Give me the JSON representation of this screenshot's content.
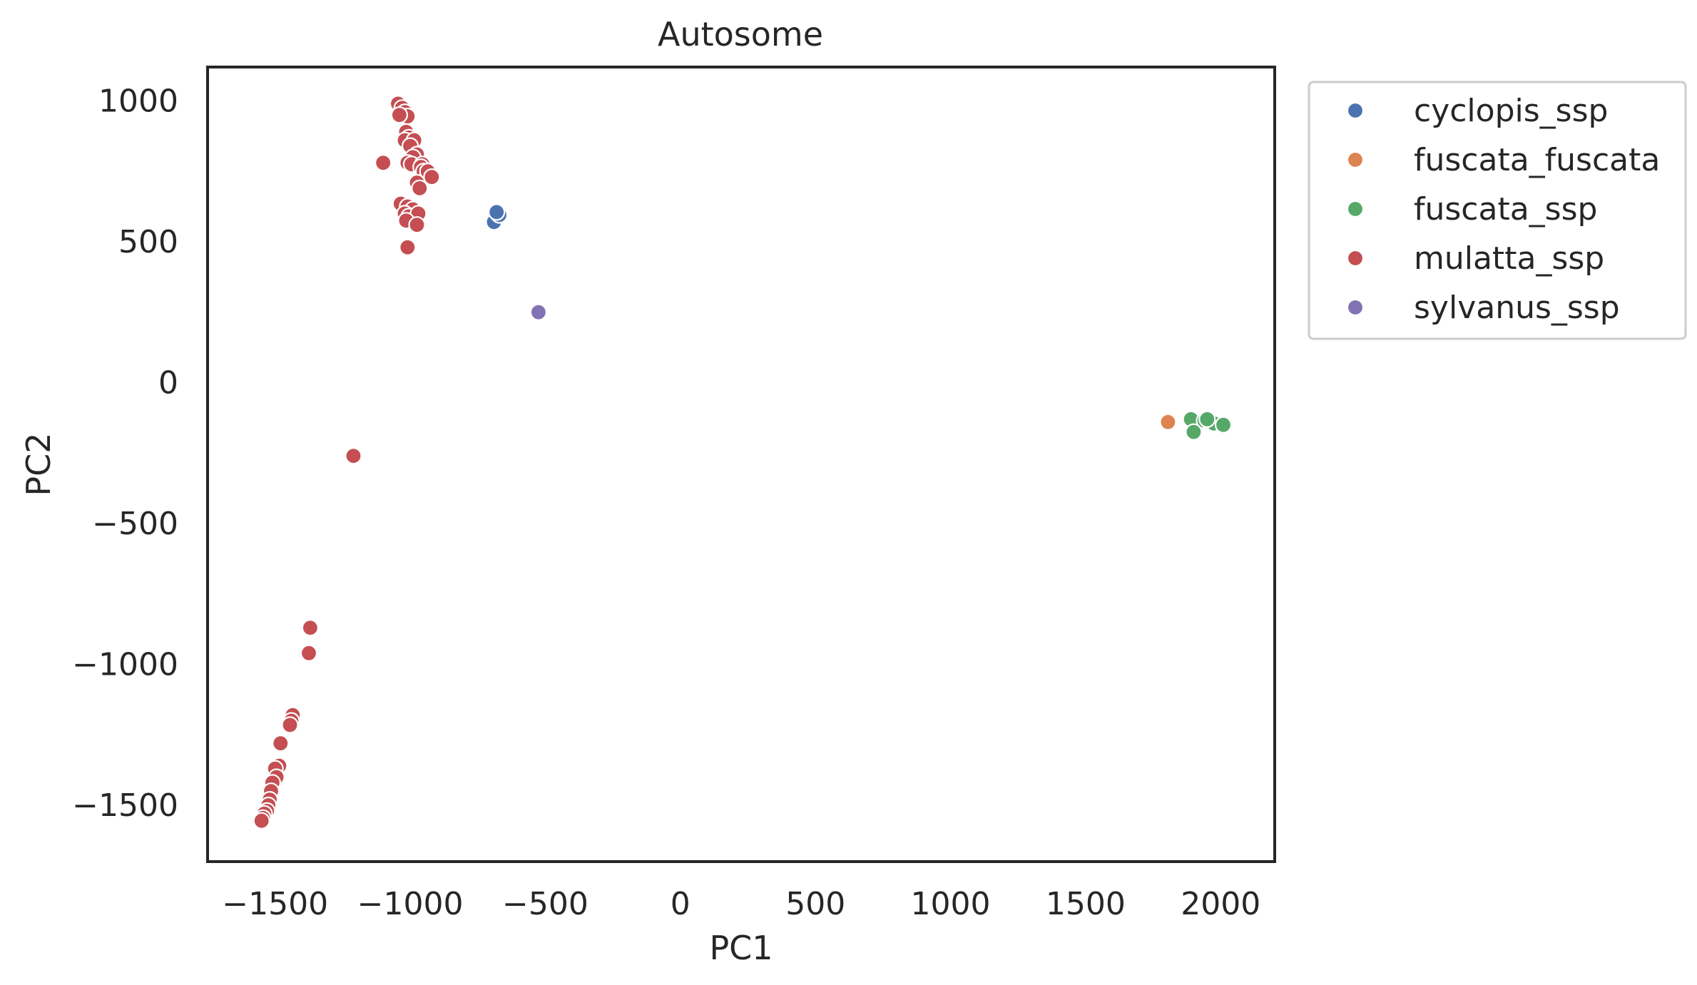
{
  "chart_data": {
    "type": "scatter",
    "title": "Autosome",
    "xlabel": "PC1",
    "ylabel": "PC2",
    "xlim": [
      -1750,
      2200
    ],
    "ylim": [
      -1700,
      1120
    ],
    "xticks": [
      {
        "value": -1500,
        "label": "−1500"
      },
      {
        "value": -1000,
        "label": "−1000"
      },
      {
        "value": -500,
        "label": "−500"
      },
      {
        "value": 0,
        "label": "0"
      },
      {
        "value": 500,
        "label": "500"
      },
      {
        "value": 1000,
        "label": "1000"
      },
      {
        "value": 1500,
        "label": "1500"
      },
      {
        "value": 2000,
        "label": "2000"
      }
    ],
    "yticks": [
      {
        "value": 1000,
        "label": "1000"
      },
      {
        "value": 500,
        "label": "500"
      },
      {
        "value": 0,
        "label": "0"
      },
      {
        "value": -500,
        "label": "−500"
      },
      {
        "value": -1000,
        "label": "−1000"
      },
      {
        "value": -1500,
        "label": "−1500"
      }
    ],
    "grid": false,
    "legend_position": "outside-upper-right",
    "series": [
      {
        "name": "cyclopis_ssp",
        "color": "#4c72b0",
        "points": [
          [
            -690,
            570
          ],
          [
            -675,
            600
          ],
          [
            -670,
            595
          ],
          [
            -680,
            605
          ]
        ]
      },
      {
        "name": "fuscata_fuscata",
        "color": "#dd8452",
        "points": [
          [
            1805,
            -140
          ]
        ]
      },
      {
        "name": "fuscata_ssp",
        "color": "#55a868",
        "points": [
          [
            1890,
            -130
          ],
          [
            1900,
            -175
          ],
          [
            1940,
            -135
          ],
          [
            1960,
            -140
          ],
          [
            1975,
            -145
          ],
          [
            2010,
            -150
          ],
          [
            1950,
            -130
          ]
        ]
      },
      {
        "name": "mulatta_ssp",
        "color": "#c44e52",
        "points": [
          [
            -1045,
            990
          ],
          [
            -1030,
            975
          ],
          [
            -1020,
            960
          ],
          [
            -1010,
            945
          ],
          [
            -1040,
            950
          ],
          [
            -1015,
            890
          ],
          [
            -1005,
            870
          ],
          [
            -1020,
            860
          ],
          [
            -985,
            860
          ],
          [
            -1000,
            840
          ],
          [
            -975,
            810
          ],
          [
            -990,
            800
          ],
          [
            -1010,
            780
          ],
          [
            -995,
            775
          ],
          [
            -955,
            775
          ],
          [
            -960,
            765
          ],
          [
            -950,
            750
          ],
          [
            -935,
            750
          ],
          [
            -920,
            730
          ],
          [
            -975,
            710
          ],
          [
            -965,
            690
          ],
          [
            -1100,
            780
          ],
          [
            -1035,
            635
          ],
          [
            -1010,
            625
          ],
          [
            -990,
            615
          ],
          [
            -1020,
            600
          ],
          [
            -1005,
            590
          ],
          [
            -970,
            600
          ],
          [
            -1015,
            575
          ],
          [
            -975,
            560
          ],
          [
            -1010,
            480
          ],
          [
            -1210,
            -260
          ],
          [
            -1370,
            -870
          ],
          [
            -1375,
            -960
          ],
          [
            -1435,
            -1180
          ],
          [
            -1440,
            -1200
          ],
          [
            -1445,
            -1215
          ],
          [
            -1480,
            -1280
          ],
          [
            -1485,
            -1360
          ],
          [
            -1500,
            -1370
          ],
          [
            -1495,
            -1400
          ],
          [
            -1510,
            -1420
          ],
          [
            -1515,
            -1450
          ],
          [
            -1520,
            -1480
          ],
          [
            -1525,
            -1500
          ],
          [
            -1530,
            -1520
          ],
          [
            -1540,
            -1530
          ],
          [
            -1545,
            -1545
          ],
          [
            -1550,
            -1555
          ]
        ]
      },
      {
        "name": "sylvanus_ssp",
        "color": "#8172b3",
        "points": [
          [
            -525,
            250
          ]
        ]
      }
    ]
  }
}
